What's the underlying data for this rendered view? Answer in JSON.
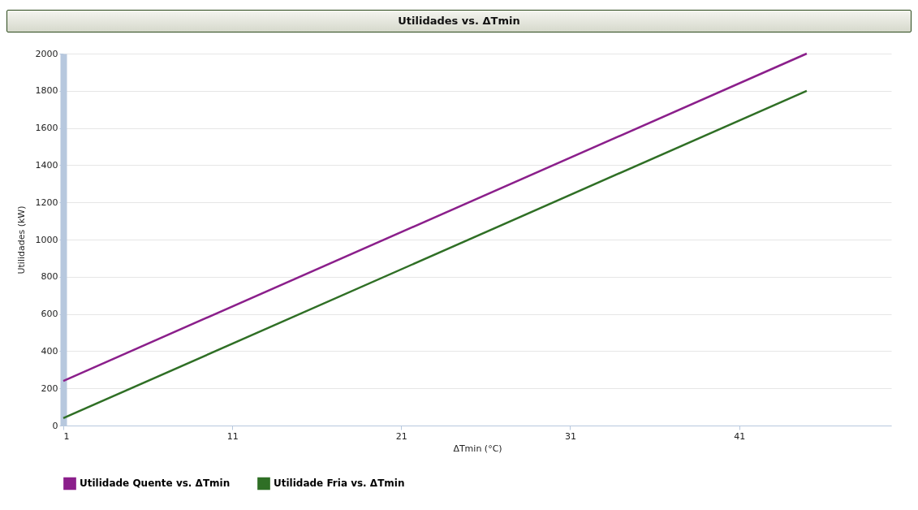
{
  "chart_data": {
    "type": "line",
    "title": "Utilidades vs. ΔTmin",
    "xlabel": "ΔTmin (°C)",
    "ylabel": "Utilidades (kW)",
    "x": [
      1,
      45
    ],
    "series": [
      {
        "name": "Utilidade Quente vs. ΔTmin",
        "color": "#8b1f8b",
        "values": [
          240,
          2000
        ]
      },
      {
        "name": "Utilidade Fria vs. ΔTmin",
        "color": "#2f6f25",
        "values": [
          40,
          1800
        ]
      }
    ],
    "xlim": [
      1,
      50
    ],
    "xticks": [
      1,
      11,
      21,
      31,
      41
    ],
    "ylim": [
      0,
      2000
    ],
    "yticks": [
      0,
      200,
      400,
      600,
      800,
      1000,
      1200,
      1400,
      1600,
      1800,
      2000
    ],
    "grid": "y",
    "legend": "bottom left",
    "marker": "none",
    "line_style": "solid"
  }
}
